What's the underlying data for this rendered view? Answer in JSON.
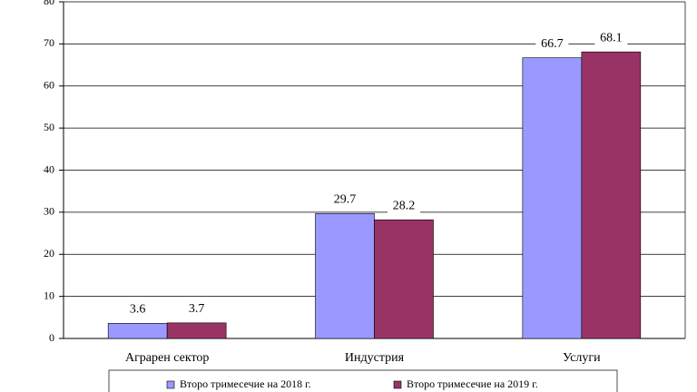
{
  "chart_data": {
    "type": "bar",
    "categories": [
      "Аграрен сектор",
      "Индустрия",
      "Услуги"
    ],
    "series": [
      {
        "name": "Второ тримесечие на 2018 г.",
        "color": "#9999ff",
        "values": [
          3.6,
          29.7,
          66.7
        ]
      },
      {
        "name": "Второ тримесечие на 2019 г.",
        "color": "#993366",
        "values": [
          3.7,
          28.2,
          68.1
        ]
      }
    ],
    "ylim": [
      0,
      80
    ],
    "yticks": [
      0,
      10,
      20,
      30,
      40,
      50,
      60,
      70,
      80
    ],
    "grid": true,
    "legend": "bottom"
  }
}
